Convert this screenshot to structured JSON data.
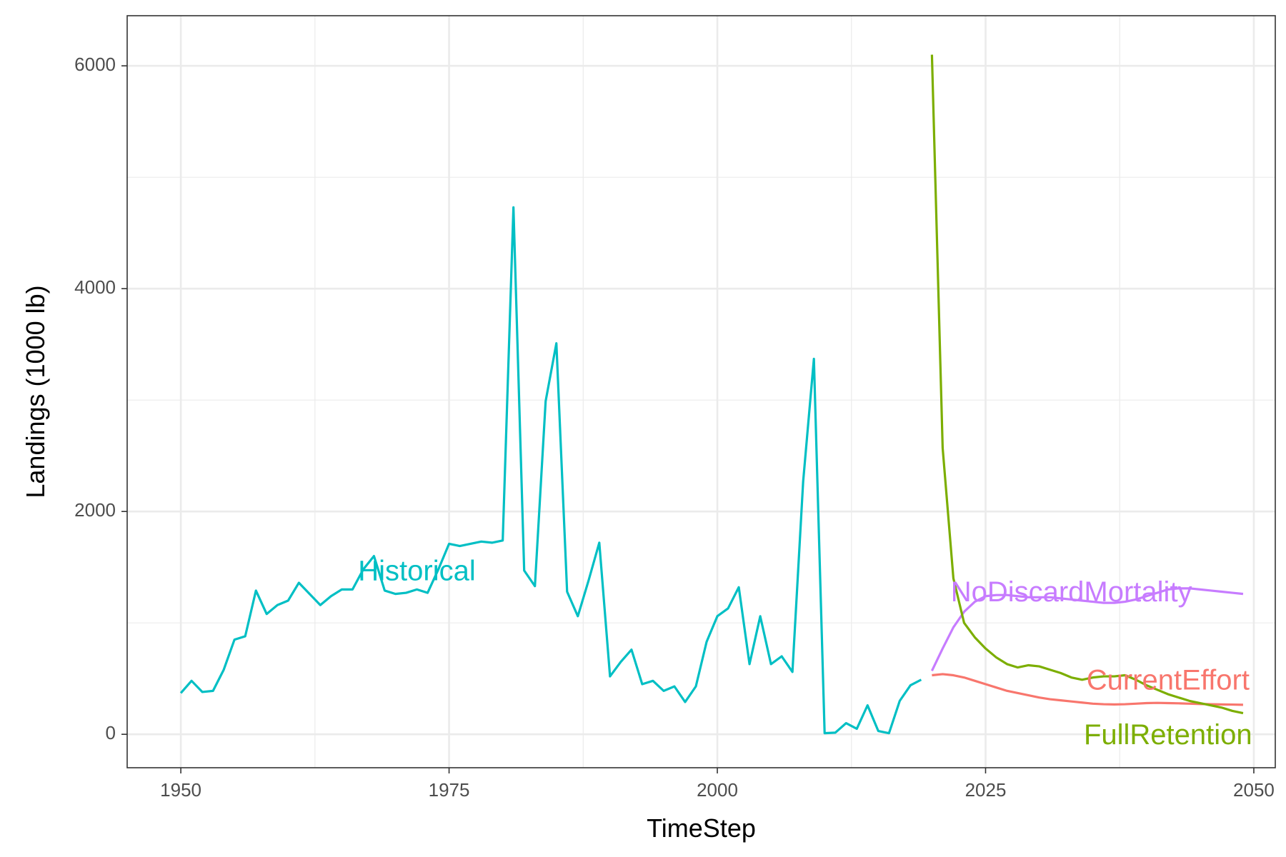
{
  "chart_data": {
    "type": "line",
    "xlabel": "TimeStep",
    "ylabel": "Landings (1000 lb)",
    "xlim": [
      1945,
      2052
    ],
    "ylim": [
      -300,
      6450
    ],
    "x_ticks": [
      1950,
      1975,
      2000,
      2025,
      2050
    ],
    "x_tick_labels": [
      "1950",
      "1975",
      "2000",
      "2025",
      "2050"
    ],
    "y_ticks": [
      0,
      2000,
      4000,
      6000
    ],
    "y_tick_labels": [
      "0",
      "2000",
      "4000",
      "6000"
    ],
    "grid": true,
    "legend": "none (direct labels)",
    "series": [
      {
        "name": "Historical",
        "color": "#00BFC4",
        "x": [
          1950,
          1951,
          1952,
          1953,
          1954,
          1955,
          1956,
          1957,
          1958,
          1959,
          1960,
          1961,
          1962,
          1963,
          1964,
          1965,
          1966,
          1967,
          1968,
          1969,
          1970,
          1971,
          1972,
          1973,
          1974,
          1975,
          1976,
          1977,
          1978,
          1979,
          1980,
          1981,
          1982,
          1983,
          1984,
          1985,
          1986,
          1987,
          1988,
          1989,
          1990,
          1991,
          1992,
          1993,
          1994,
          1995,
          1996,
          1997,
          1998,
          1999,
          2000,
          2001,
          2002,
          2003,
          2004,
          2005,
          2006,
          2007,
          2008,
          2009,
          2010,
          2011,
          2012,
          2013,
          2014,
          2015,
          2016,
          2017,
          2018,
          2019
        ],
        "y": [
          370,
          480,
          380,
          390,
          580,
          850,
          880,
          1290,
          1080,
          1160,
          1200,
          1360,
          1260,
          1160,
          1240,
          1300,
          1300,
          1480,
          1600,
          1290,
          1260,
          1270,
          1300,
          1270,
          1480,
          1710,
          1690,
          1710,
          1730,
          1720,
          1740,
          4730,
          1470,
          1330,
          2990,
          3510,
          1280,
          1060,
          1380,
          1720,
          520,
          650,
          760,
          450,
          480,
          390,
          430,
          290,
          430,
          830,
          1060,
          1130,
          1320,
          630,
          1060,
          630,
          700,
          560,
          2270,
          3370,
          10,
          15,
          100,
          50,
          260,
          30,
          10,
          300,
          440,
          490
        ],
        "label_position": {
          "x": 1972,
          "y": 1450
        }
      },
      {
        "name": "NoDiscardMortality",
        "color": "#C77CFF",
        "x": [
          2020,
          2021,
          2022,
          2023,
          2024,
          2025,
          2026,
          2027,
          2028,
          2029,
          2030,
          2031,
          2032,
          2033,
          2034,
          2035,
          2036,
          2037,
          2038,
          2039,
          2040,
          2041,
          2042,
          2043,
          2044,
          2045,
          2046,
          2047,
          2048,
          2049
        ],
        "y": [
          570,
          770,
          960,
          1100,
          1190,
          1240,
          1250,
          1250,
          1240,
          1230,
          1230,
          1230,
          1220,
          1210,
          1200,
          1190,
          1180,
          1180,
          1190,
          1210,
          1240,
          1270,
          1300,
          1310,
          1310,
          1300,
          1290,
          1280,
          1270,
          1260
        ],
        "label_position": {
          "x": 2033,
          "y": 1260
        }
      },
      {
        "name": "CurrentEffort",
        "color": "#F8766D",
        "x": [
          2020,
          2021,
          2022,
          2023,
          2024,
          2025,
          2026,
          2027,
          2028,
          2029,
          2030,
          2031,
          2032,
          2033,
          2034,
          2035,
          2036,
          2037,
          2038,
          2039,
          2040,
          2041,
          2042,
          2043,
          2044,
          2045,
          2046,
          2047,
          2048,
          2049
        ],
        "y": [
          530,
          540,
          530,
          510,
          480,
          450,
          420,
          390,
          370,
          350,
          330,
          315,
          305,
          295,
          285,
          275,
          270,
          268,
          270,
          275,
          280,
          282,
          280,
          278,
          275,
          272,
          270,
          268,
          267,
          265
        ],
        "label_position": {
          "x": 2042,
          "y": 470
        }
      },
      {
        "name": "FullRetention",
        "color": "#7CAE00",
        "x": [
          2020,
          2021,
          2022,
          2023,
          2024,
          2025,
          2026,
          2027,
          2028,
          2029,
          2030,
          2031,
          2032,
          2033,
          2034,
          2035,
          2036,
          2037,
          2038,
          2039,
          2040,
          2041,
          2042,
          2043,
          2044,
          2045,
          2046,
          2047,
          2048,
          2049
        ],
        "y": [
          6100,
          2570,
          1400,
          1000,
          870,
          770,
          690,
          630,
          600,
          620,
          610,
          580,
          550,
          510,
          490,
          510,
          520,
          520,
          530,
          490,
          440,
          400,
          360,
          330,
          300,
          280,
          260,
          240,
          210,
          190
        ],
        "label_position": {
          "x": 2042,
          "y": -20
        }
      }
    ]
  }
}
